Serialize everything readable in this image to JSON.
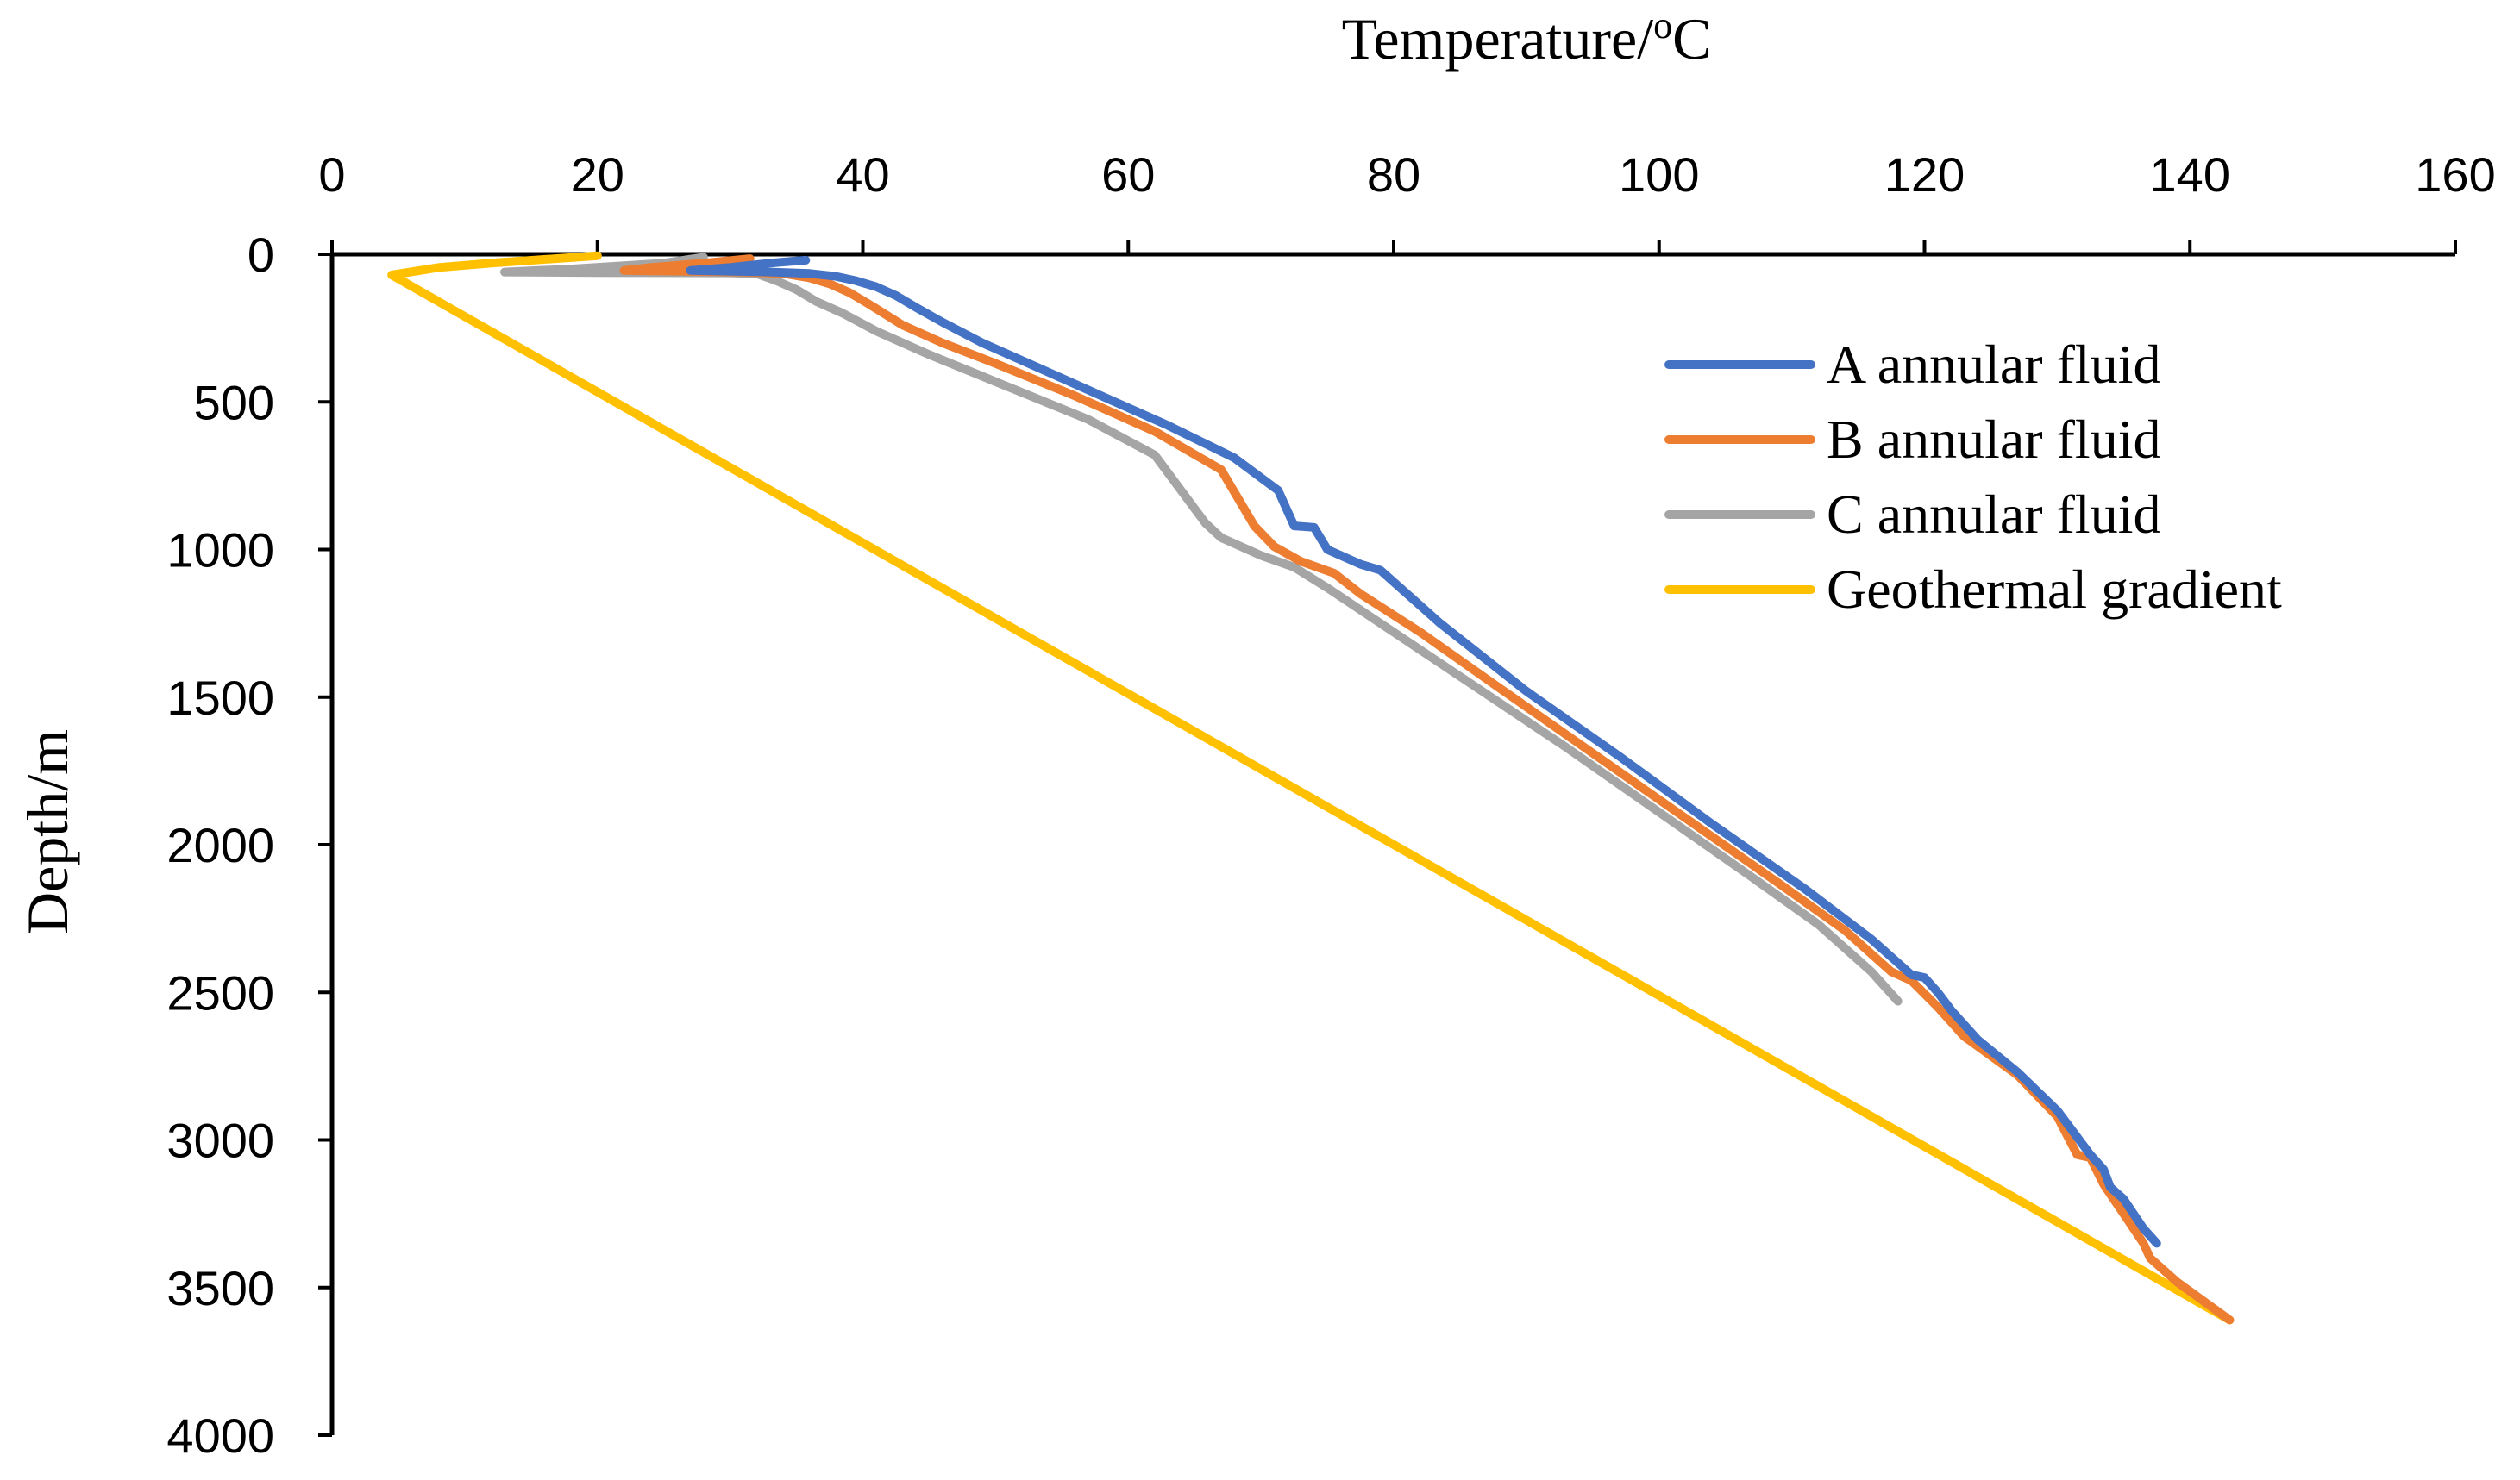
{
  "chart_data": {
    "type": "line",
    "title": "",
    "xlabel": "Temperature/",
    "xlabel_sup": "o",
    "xlabel_unit": "C",
    "ylabel": "Depth/m",
    "xlim": [
      0,
      160
    ],
    "ylim": [
      0,
      4000
    ],
    "x_axis_position": "top",
    "y_axis_inverted": true,
    "grid": false,
    "legend_position": "top-right",
    "xticks": [
      "0",
      "20",
      "40",
      "60",
      "80",
      "100",
      "120",
      "140",
      "160"
    ],
    "yticks": [
      "0",
      "500",
      "1000",
      "1500",
      "2000",
      "2500",
      "3000",
      "3500",
      "4000"
    ],
    "series": [
      {
        "name": "A annular fluid",
        "color": "#4472C4",
        "points": [
          [
            35.7,
            20
          ],
          [
            33,
            30
          ],
          [
            30,
            45
          ],
          [
            27,
            55
          ],
          [
            33,
            60
          ],
          [
            36,
            65
          ],
          [
            38,
            75
          ],
          [
            39.5,
            90
          ],
          [
            41,
            110
          ],
          [
            42.5,
            140
          ],
          [
            44,
            180
          ],
          [
            46,
            230
          ],
          [
            49,
            300
          ],
          [
            53,
            380
          ],
          [
            58,
            480
          ],
          [
            63,
            580
          ],
          [
            68,
            690
          ],
          [
            71.3,
            800
          ],
          [
            72.5,
            920
          ],
          [
            74,
            925
          ],
          [
            75,
            1000
          ],
          [
            77.5,
            1050
          ],
          [
            79,
            1070
          ],
          [
            80.5,
            1130
          ],
          [
            83.5,
            1250
          ],
          [
            90,
            1480
          ],
          [
            97,
            1700
          ],
          [
            104,
            1930
          ],
          [
            111,
            2150
          ],
          [
            116,
            2320
          ],
          [
            119,
            2440
          ],
          [
            120,
            2450
          ],
          [
            121,
            2500
          ],
          [
            122,
            2560
          ],
          [
            124,
            2660
          ],
          [
            127,
            2770
          ],
          [
            130,
            2900
          ],
          [
            132.5,
            3050
          ],
          [
            133.5,
            3100
          ],
          [
            134,
            3160
          ],
          [
            135,
            3200
          ],
          [
            136.5,
            3300
          ],
          [
            137.5,
            3350
          ]
        ]
      },
      {
        "name": "B annular fluid",
        "color": "#ED7D31",
        "points": [
          [
            31.5,
            15
          ],
          [
            28,
            30
          ],
          [
            24,
            45
          ],
          [
            22,
            55
          ],
          [
            31,
            60
          ],
          [
            34,
            65
          ],
          [
            36,
            80
          ],
          [
            37.5,
            100
          ],
          [
            39,
            130
          ],
          [
            40.5,
            170
          ],
          [
            43,
            240
          ],
          [
            46,
            300
          ],
          [
            50,
            370
          ],
          [
            56,
            480
          ],
          [
            62,
            600
          ],
          [
            67,
            730
          ],
          [
            69.5,
            920
          ],
          [
            71,
            990
          ],
          [
            73,
            1040
          ],
          [
            75.5,
            1080
          ],
          [
            77.5,
            1150
          ],
          [
            82,
            1280
          ],
          [
            88,
            1470
          ],
          [
            95,
            1690
          ],
          [
            102,
            1910
          ],
          [
            109,
            2130
          ],
          [
            114,
            2290
          ],
          [
            117.5,
            2430
          ],
          [
            119,
            2460
          ],
          [
            121,
            2550
          ],
          [
            123,
            2650
          ],
          [
            127,
            2780
          ],
          [
            130,
            2920
          ],
          [
            131.5,
            3050
          ],
          [
            132.5,
            3060
          ],
          [
            133.5,
            3150
          ],
          [
            135,
            3250
          ],
          [
            136.5,
            3350
          ],
          [
            137,
            3400
          ],
          [
            139,
            3480
          ],
          [
            143,
            3610
          ]
        ]
      },
      {
        "name": "C annular fluid",
        "color": "#A5A5A5",
        "points": [
          [
            28,
            10
          ],
          [
            25,
            30
          ],
          [
            18,
            50
          ],
          [
            13,
            60
          ],
          [
            20,
            62
          ],
          [
            30,
            63
          ],
          [
            32,
            66
          ],
          [
            33.5,
            90
          ],
          [
            35,
            120
          ],
          [
            36.5,
            160
          ],
          [
            38.5,
            200
          ],
          [
            41,
            260
          ],
          [
            45,
            340
          ],
          [
            51,
            450
          ],
          [
            57,
            560
          ],
          [
            62,
            680
          ],
          [
            65.8,
            910
          ],
          [
            67,
            960
          ],
          [
            70,
            1020
          ],
          [
            72.5,
            1060
          ],
          [
            75,
            1130
          ],
          [
            80,
            1280
          ],
          [
            86,
            1460
          ],
          [
            93,
            1670
          ],
          [
            100,
            1890
          ],
          [
            107,
            2110
          ],
          [
            112,
            2270
          ],
          [
            116,
            2430
          ],
          [
            118,
            2530
          ]
        ]
      },
      {
        "name": "Geothermal gradient",
        "color": "#FFC000",
        "points": [
          [
            20,
            5
          ],
          [
            12,
            30
          ],
          [
            8,
            45
          ],
          [
            4.5,
            70
          ],
          [
            143,
            3610
          ]
        ]
      }
    ]
  }
}
